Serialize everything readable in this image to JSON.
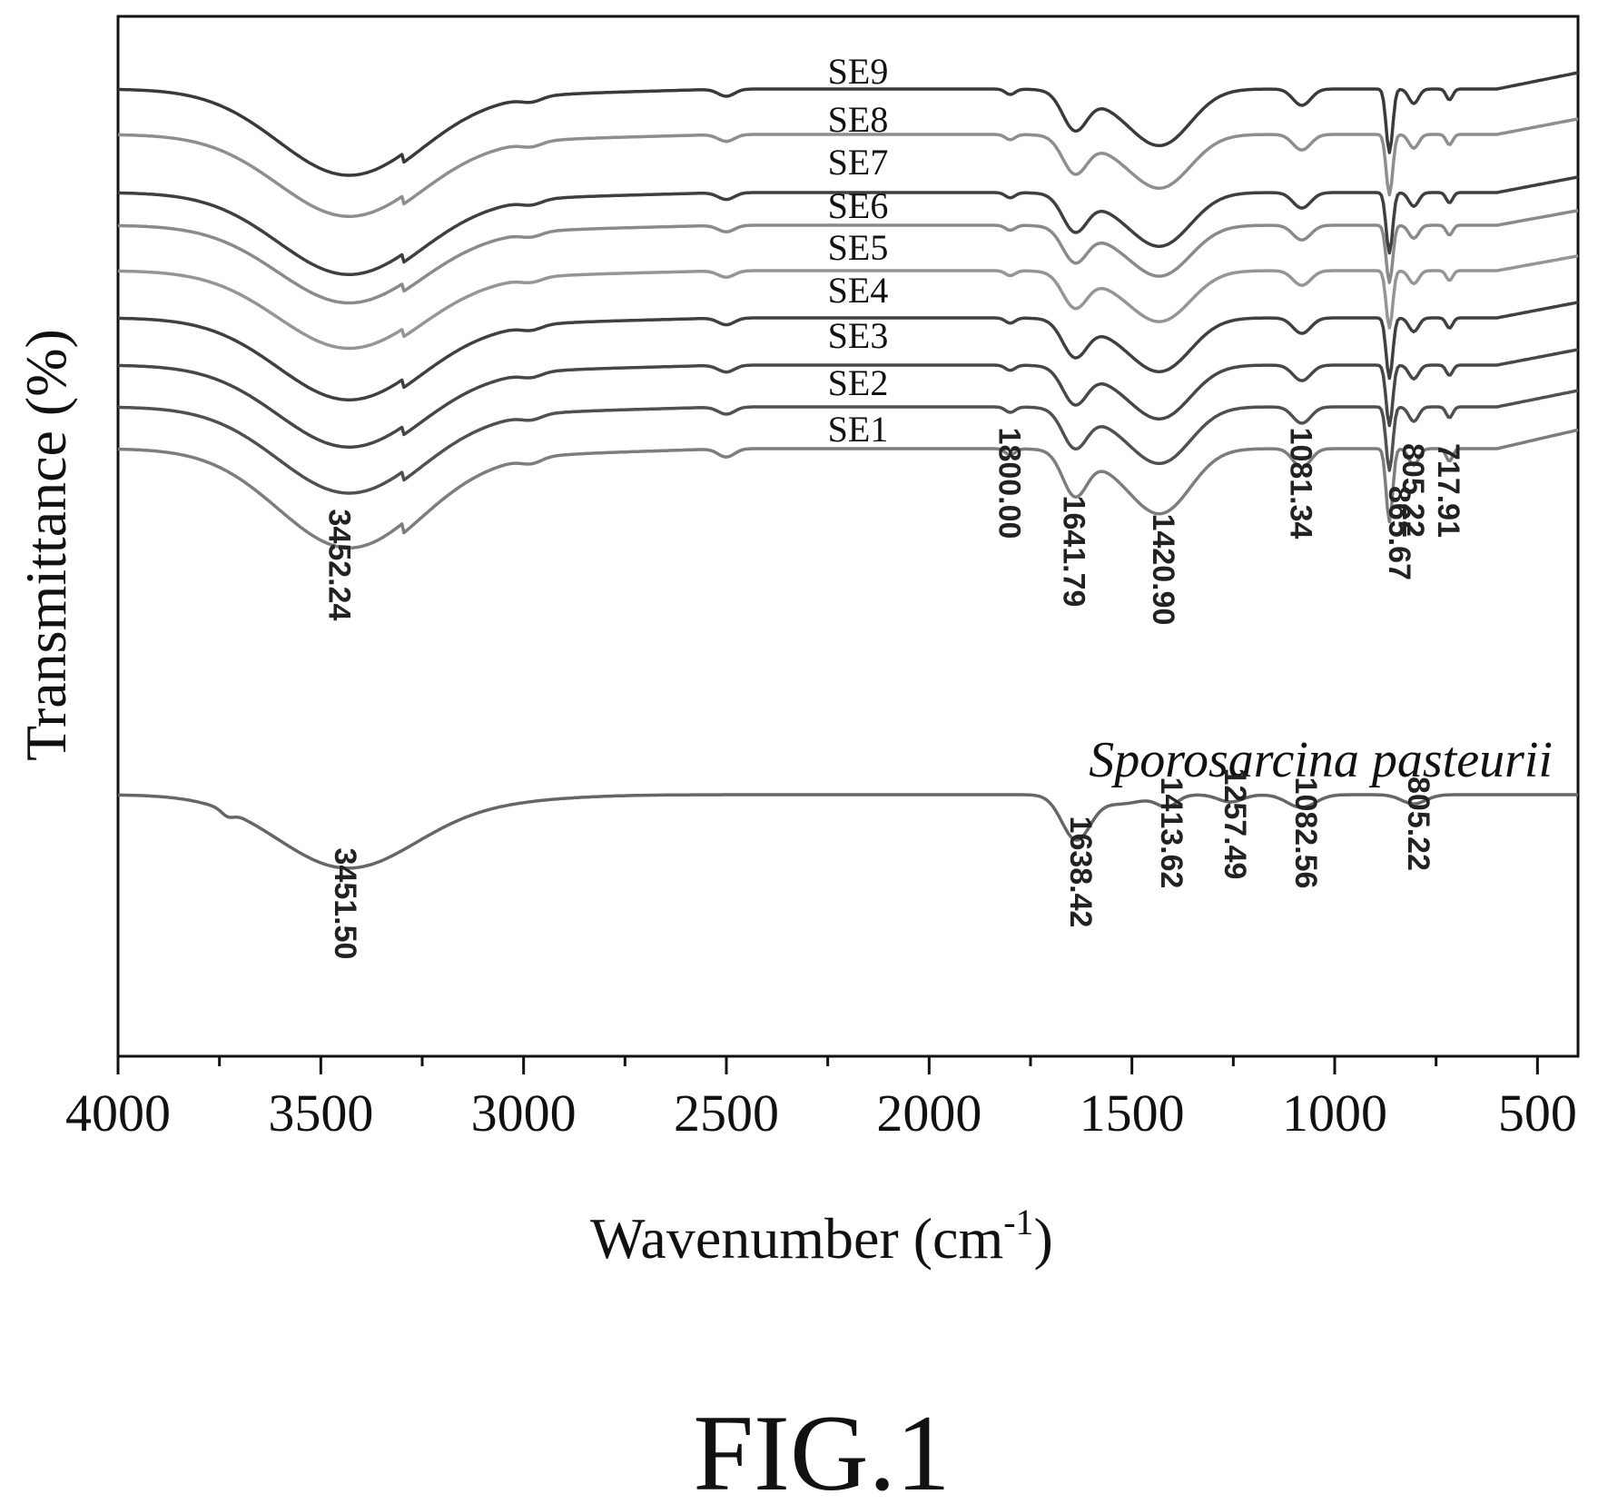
{
  "figure_label": "FIG.1",
  "chart_data": {
    "type": "line",
    "xlabel": "Wavenumber (cm",
    "xlabel_sup": "-1",
    "xlabel_close": ")",
    "ylabel": "Transmittance (%)",
    "xlim": [
      4000,
      400
    ],
    "x_reversed": true,
    "x_ticks": [
      4000,
      3500,
      3000,
      2500,
      2000,
      1500,
      1000,
      500
    ],
    "x_tick_labels": [
      "4000",
      "3500",
      "3000",
      "2500",
      "2000",
      "1500",
      "1000",
      "500"
    ],
    "y_tick_labels_shown": false,
    "grid": false,
    "series_note": "Stacked FTIR spectra; y offsets are relative (no y scale printed).",
    "series": [
      {
        "name": "SE9",
        "color": "#3a3a3a",
        "offset": 9
      },
      {
        "name": "SE8",
        "color": "#8e8e8e",
        "offset": 8
      },
      {
        "name": "SE7",
        "color": "#3f3f3f",
        "offset": 7
      },
      {
        "name": "SE6",
        "color": "#8a8a8a",
        "offset": 6
      },
      {
        "name": "SE5",
        "color": "#959595",
        "offset": 5
      },
      {
        "name": "SE4",
        "color": "#404040",
        "offset": 4
      },
      {
        "name": "SE3",
        "color": "#474747",
        "offset": 3
      },
      {
        "name": "SE2",
        "color": "#505050",
        "offset": 2
      },
      {
        "name": "SE1",
        "color": "#7d7d7d",
        "offset": 1
      },
      {
        "name": "Sporosarcina pasteurii",
        "color": "#666666",
        "offset": 0
      }
    ],
    "peak_labels_SE": [
      "3452.24",
      "1800.00",
      "1641.79",
      "1420.90",
      "1081.34",
      "865.67",
      "805.22",
      "717.91"
    ],
    "peak_labels_SP": [
      "3451.50",
      "1638.42",
      "1413.62",
      "1257.49",
      "1082.56",
      "805.22"
    ]
  }
}
